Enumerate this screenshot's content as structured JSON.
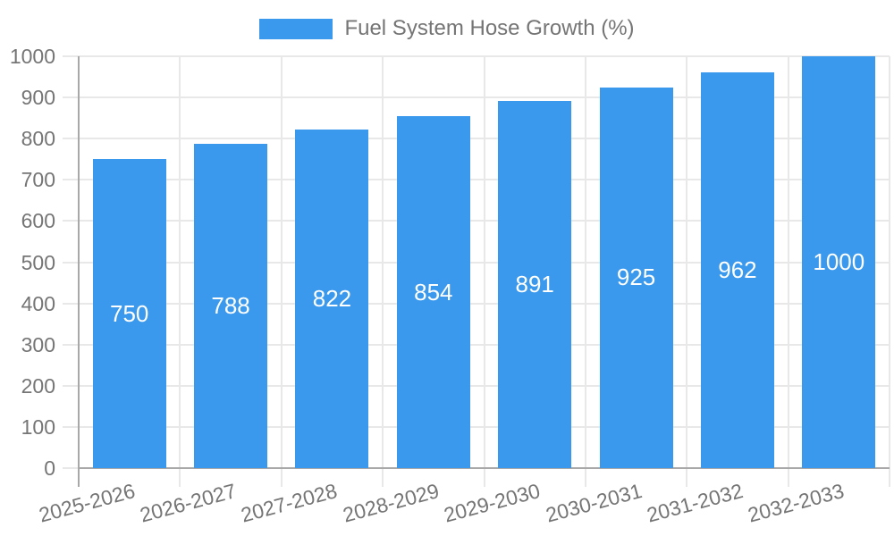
{
  "legend": {
    "label": "Fuel System Hose Growth (%)"
  },
  "chart_data": {
    "type": "bar",
    "title": "Fuel System Hose Growth (%)",
    "categories": [
      "2025-2026",
      "2026-2027",
      "2027-2028",
      "2028-2029",
      "2029-2030",
      "2030-2031",
      "2031-2032",
      "2032-2033"
    ],
    "values": [
      750,
      788,
      822,
      854,
      891,
      925,
      962,
      1000
    ],
    "xlabel": "",
    "ylabel": "",
    "ylim": [
      0,
      1000
    ],
    "ytick_step": 100,
    "grid": true,
    "legend_position": "top",
    "bar_label_position": "center-inside"
  },
  "colors": {
    "bar": "#3A99EC",
    "bar_value_text": "#ffffff",
    "axis_text": "#757575",
    "gridline": "#e8e8e8",
    "axis_line": "#a8a8a8",
    "background": "#ffffff"
  }
}
